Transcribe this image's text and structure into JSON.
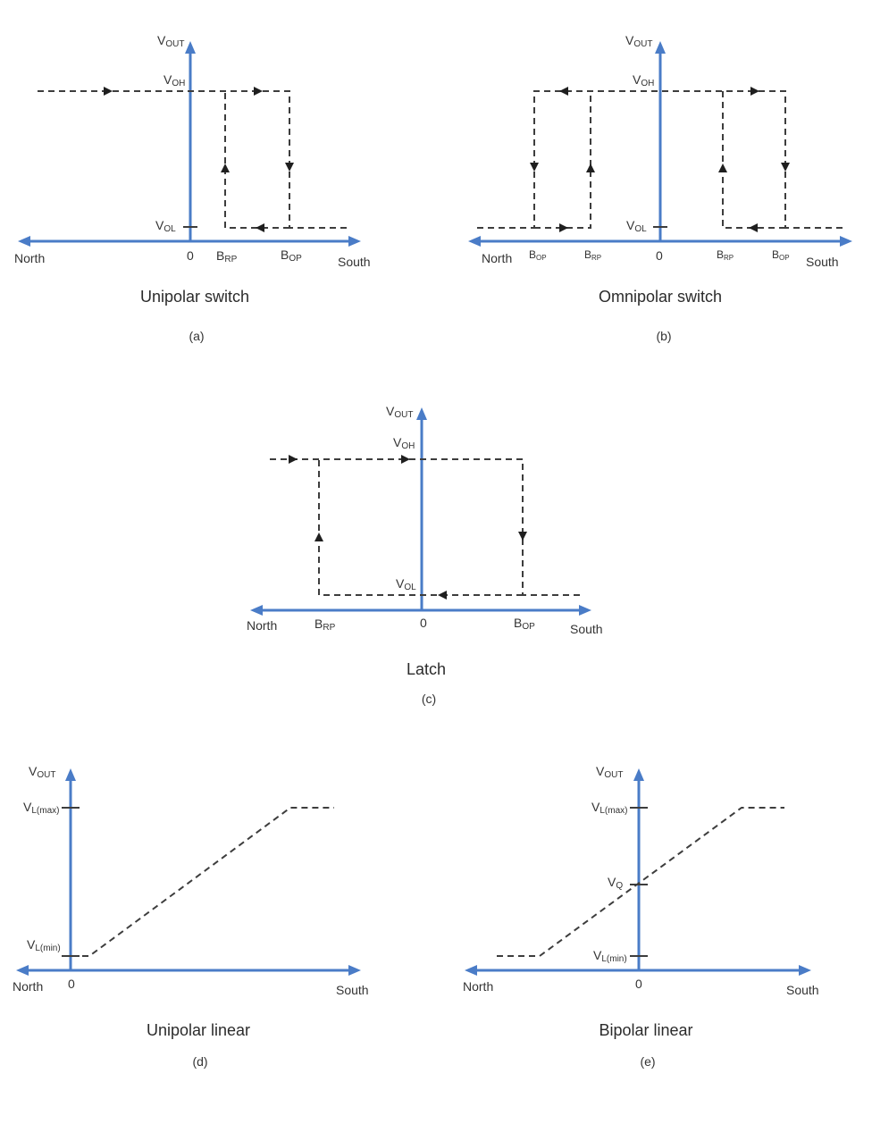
{
  "axes": {
    "vout": "V",
    "vout_sub": "OUT",
    "north": "North",
    "south": "South",
    "zero": "0"
  },
  "levels": {
    "voh": "V",
    "voh_sub": "OH",
    "vol": "V",
    "vol_sub": "OL",
    "vlmax": "V",
    "vlmax_sub": "L(max)",
    "vlmin": "V",
    "vlmin_sub": "L(min)",
    "vq": "V",
    "vq_sub": "Q"
  },
  "points": {
    "brp": "B",
    "brp_sub": "RP",
    "bop": "B",
    "bop_sub": "OP"
  },
  "panels": {
    "a": {
      "title": "Unipolar switch",
      "tag": "(a)"
    },
    "b": {
      "title": "Omnipolar switch",
      "tag": "(b)"
    },
    "c": {
      "title": "Latch",
      "tag": "(c)"
    },
    "d": {
      "title": "Unipolar linear",
      "tag": "(d)"
    },
    "e": {
      "title": "Bipolar linear",
      "tag": "(e)"
    }
  },
  "colors": {
    "axis": "#4a7cc7",
    "trace": "#3d3d3d"
  }
}
